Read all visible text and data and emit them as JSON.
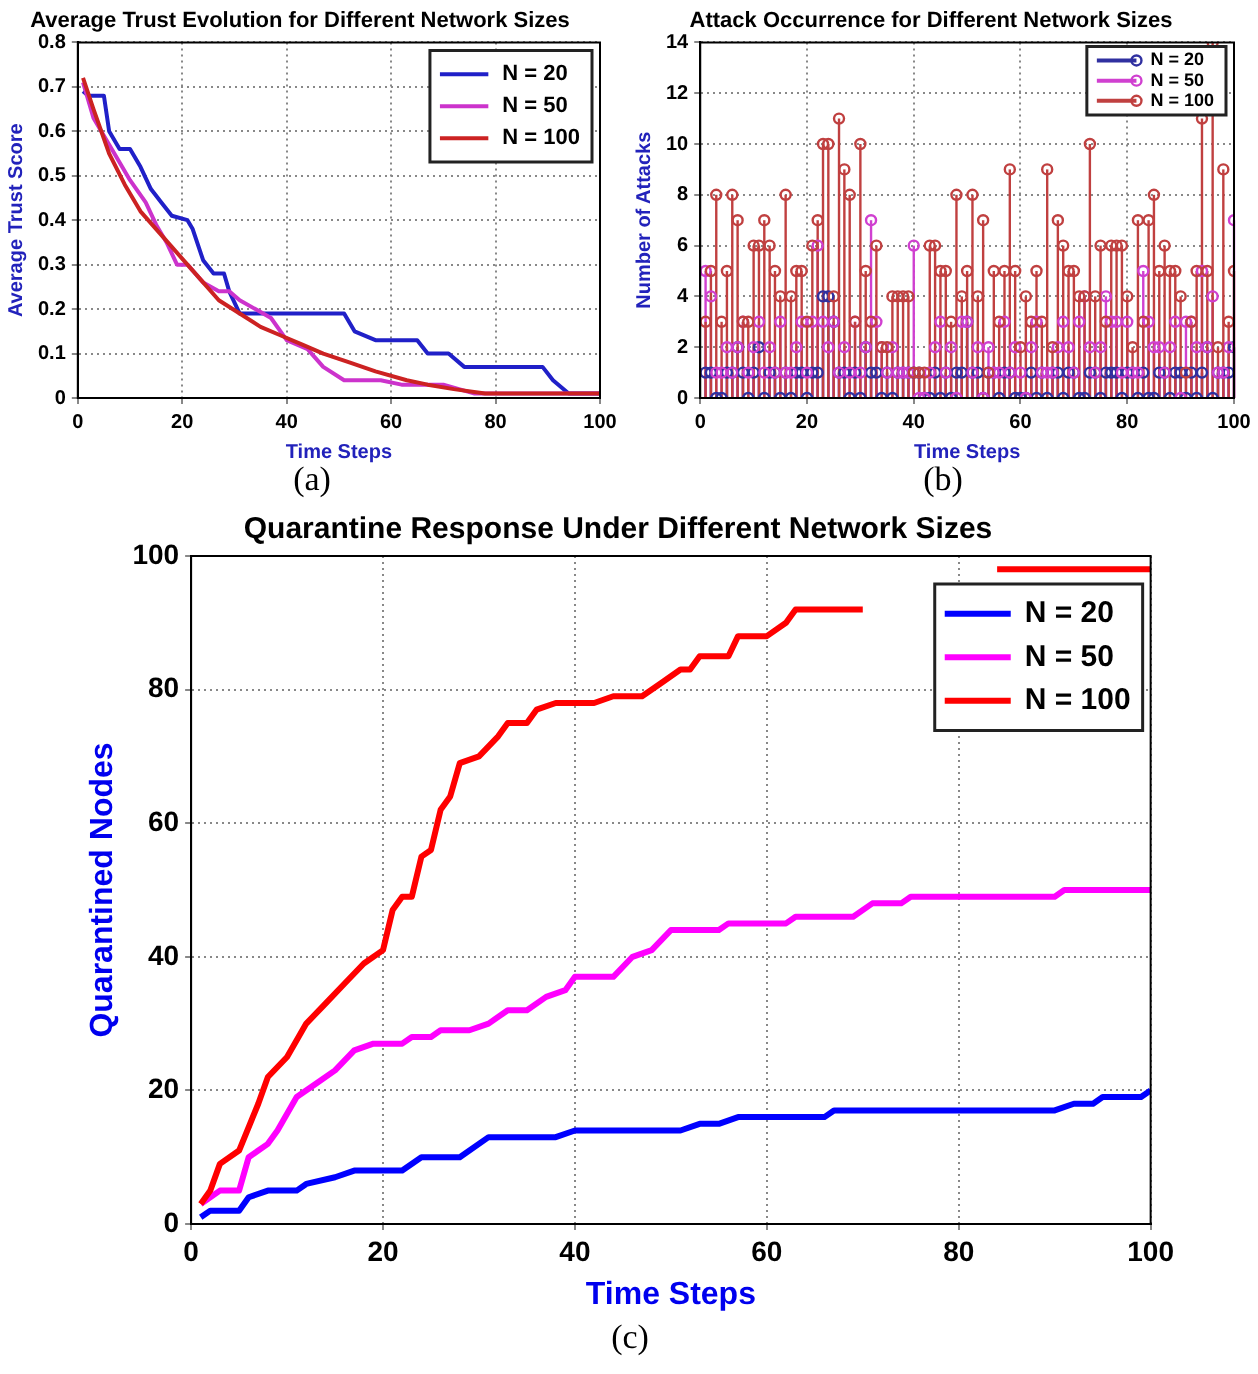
{
  "chart_data": [
    {
      "type": "line",
      "title": "Average Trust Evolution for Different Network Sizes",
      "xlabel": "Time Steps",
      "ylabel": "Average Trust Score",
      "annotations": [
        "(a)"
      ],
      "xlim": [
        0,
        100
      ],
      "xticks": [
        0,
        20,
        40,
        60,
        80,
        100
      ],
      "ylim": [
        0,
        0.8
      ],
      "yticks": [
        0,
        0.1,
        0.2,
        0.3,
        0.4,
        0.5,
        0.6,
        0.7,
        0.8
      ],
      "grid": true,
      "legend": "top right",
      "series": [
        {
          "name": "N = 20",
          "color": "#2020c8",
          "x": [
            1,
            2,
            5,
            6,
            8,
            10,
            12,
            14,
            16,
            18,
            21,
            22,
            24,
            26,
            28,
            29,
            31,
            51,
            53,
            57,
            65,
            67,
            71,
            74,
            89,
            91,
            94,
            100
          ],
          "values": [
            0.69,
            0.68,
            0.68,
            0.6,
            0.56,
            0.56,
            0.52,
            0.47,
            0.44,
            0.41,
            0.4,
            0.38,
            0.31,
            0.28,
            0.28,
            0.24,
            0.19,
            0.19,
            0.15,
            0.13,
            0.13,
            0.1,
            0.1,
            0.07,
            0.07,
            0.04,
            0.01,
            0.01
          ]
        },
        {
          "name": "N = 50",
          "color": "#cc33cc",
          "x": [
            1,
            3,
            5,
            7,
            10,
            13,
            15,
            17,
            19,
            21,
            24,
            27,
            29,
            31,
            34,
            37,
            40,
            44,
            47,
            51,
            58,
            62,
            70,
            76,
            100
          ],
          "values": [
            0.71,
            0.63,
            0.59,
            0.55,
            0.49,
            0.44,
            0.39,
            0.35,
            0.3,
            0.3,
            0.26,
            0.24,
            0.24,
            0.22,
            0.2,
            0.18,
            0.13,
            0.11,
            0.07,
            0.04,
            0.04,
            0.03,
            0.03,
            0.01,
            0.01
          ]
        },
        {
          "name": "N = 100",
          "color": "#cc2222",
          "x": [
            1,
            3,
            6,
            9,
            12,
            15,
            18,
            21,
            24,
            27,
            31,
            35,
            39,
            43,
            47,
            52,
            57,
            63,
            67,
            72,
            78,
            100
          ],
          "values": [
            0.72,
            0.65,
            0.55,
            0.48,
            0.42,
            0.38,
            0.34,
            0.3,
            0.26,
            0.22,
            0.19,
            0.16,
            0.14,
            0.12,
            0.1,
            0.08,
            0.06,
            0.04,
            0.03,
            0.02,
            0.01,
            0.01
          ]
        }
      ]
    },
    {
      "type": "lollipop",
      "title": "Attack Occurrence for Different Network Sizes",
      "xlabel": "Time Steps",
      "ylabel": "Number of Attacks",
      "annotations": [
        "(b)"
      ],
      "xlim": [
        0,
        100
      ],
      "xticks": [
        0,
        20,
        40,
        60,
        80,
        100
      ],
      "ylim": [
        0,
        14
      ],
      "yticks": [
        0,
        2,
        4,
        6,
        8,
        10,
        12,
        14
      ],
      "grid": true,
      "legend": "top right",
      "marker": "circle",
      "x": [
        1,
        2,
        3,
        4,
        5,
        6,
        7,
        8,
        9,
        10,
        11,
        12,
        13,
        14,
        15,
        16,
        17,
        18,
        19,
        20,
        21,
        22,
        23,
        24,
        25,
        26,
        27,
        28,
        29,
        30,
        31,
        32,
        33,
        34,
        35,
        36,
        37,
        38,
        39,
        40,
        41,
        42,
        43,
        44,
        45,
        46,
        47,
        48,
        49,
        50,
        51,
        52,
        53,
        54,
        55,
        56,
        57,
        58,
        59,
        60,
        61,
        62,
        63,
        64,
        65,
        66,
        67,
        68,
        69,
        70,
        71,
        72,
        73,
        74,
        75,
        76,
        77,
        78,
        79,
        80,
        81,
        82,
        83,
        84,
        85,
        86,
        87,
        88,
        89,
        90,
        91,
        92,
        93,
        94,
        95,
        96,
        97,
        98,
        99,
        100
      ],
      "series": [
        {
          "name": "N = 20",
          "color": "#3030a0",
          "values": [
            1,
            1,
            0,
            0,
            1,
            1,
            2,
            1,
            0,
            1,
            2,
            0,
            1,
            1,
            0,
            1,
            0,
            1,
            1,
            0,
            1,
            1,
            4,
            4,
            3,
            1,
            1,
            0,
            1,
            0,
            2,
            1,
            1,
            0,
            1,
            0,
            1,
            1,
            1,
            1,
            1,
            0,
            0,
            1,
            0,
            1,
            0,
            1,
            1,
            3,
            1,
            1,
            0,
            1,
            1,
            0,
            1,
            1,
            0,
            0,
            0,
            1,
            0,
            1,
            0,
            1,
            1,
            0,
            1,
            1,
            0,
            0,
            1,
            1,
            0,
            1,
            1,
            1,
            0,
            1,
            1,
            0,
            1,
            0,
            0,
            1,
            1,
            0,
            1,
            1,
            0,
            1,
            0,
            1,
            2,
            0,
            1,
            1,
            1,
            2
          ]
        },
        {
          "name": "N = 50",
          "color": "#d040d0",
          "values": [
            5,
            4,
            1,
            1,
            2,
            1,
            2,
            3,
            1,
            2,
            3,
            1,
            2,
            1,
            3,
            1,
            1,
            2,
            3,
            1,
            3,
            6,
            3,
            2,
            3,
            1,
            2,
            1,
            3,
            1,
            2,
            7,
            3,
            2,
            1,
            2,
            1,
            1,
            1,
            6,
            0,
            0,
            1,
            2,
            3,
            1,
            2,
            0,
            3,
            3,
            1,
            2,
            0,
            2,
            1,
            1,
            3,
            1,
            2,
            1,
            0,
            2,
            3,
            1,
            1,
            1,
            2,
            3,
            2,
            1,
            3,
            4,
            2,
            1,
            2,
            4,
            3,
            3,
            1,
            3,
            1,
            1,
            5,
            3,
            2,
            2,
            1,
            2,
            3,
            0,
            3,
            3,
            2,
            5,
            2,
            4,
            1,
            1,
            2,
            7
          ]
        },
        {
          "name": "N = 100",
          "color": "#c04040",
          "values": [
            3,
            5,
            8,
            3,
            5,
            8,
            7,
            3,
            3,
            6,
            6,
            7,
            6,
            5,
            4,
            8,
            4,
            5,
            5,
            3,
            6,
            7,
            10,
            10,
            4,
            11,
            9,
            8,
            3,
            10,
            5,
            3,
            6,
            2,
            2,
            4,
            4,
            4,
            4,
            1,
            1,
            1,
            6,
            6,
            5,
            5,
            3,
            8,
            4,
            5,
            8,
            4,
            7,
            1,
            5,
            3,
            5,
            9,
            5,
            2,
            4,
            3,
            5,
            3,
            9,
            2,
            7,
            6,
            5,
            5,
            4,
            4,
            10,
            4,
            6,
            3,
            6,
            6,
            6,
            4,
            2,
            7,
            3,
            7,
            8,
            5,
            6,
            5,
            5,
            4,
            1,
            3,
            5,
            11,
            5,
            14,
            2,
            9,
            3,
            5
          ]
        }
      ]
    },
    {
      "type": "line",
      "title": "Quarantine Response Under Different Network Sizes",
      "xlabel": "Time Steps",
      "ylabel": "Quarantined Nodes",
      "annotations": [
        "(c)"
      ],
      "xlim": [
        0,
        100
      ],
      "xticks": [
        0,
        20,
        40,
        60,
        80,
        100
      ],
      "ylim": [
        0,
        100
      ],
      "yticks": [
        0,
        20,
        40,
        60,
        80,
        100
      ],
      "grid": true,
      "legend": "top right",
      "series": [
        {
          "name": "N = 20",
          "color": "#0000ff",
          "x": [
            1,
            2,
            5,
            6,
            8,
            11,
            12,
            15,
            17,
            22,
            24,
            28,
            31,
            38,
            40,
            51,
            53,
            55,
            57,
            66,
            67,
            90,
            92,
            94,
            95,
            99,
            100
          ],
          "values": [
            1,
            2,
            2,
            4,
            5,
            5,
            6,
            7,
            8,
            8,
            10,
            10,
            13,
            13,
            14,
            14,
            15,
            15,
            16,
            16,
            17,
            17,
            18,
            18,
            19,
            19,
            20
          ]
        },
        {
          "name": "N = 50",
          "color": "#ff00ff",
          "x": [
            1,
            3,
            5,
            6,
            8,
            9,
            11,
            13,
            15,
            17,
            19,
            22,
            23,
            25,
            26,
            29,
            31,
            33,
            35,
            37,
            39,
            40,
            44,
            46,
            48,
            50,
            55,
            56,
            62,
            63,
            69,
            71,
            74,
            75,
            90,
            91,
            100
          ],
          "values": [
            3,
            5,
            5,
            10,
            12,
            14,
            19,
            21,
            23,
            26,
            27,
            27,
            28,
            28,
            29,
            29,
            30,
            32,
            32,
            34,
            35,
            37,
            37,
            40,
            41,
            44,
            44,
            45,
            45,
            46,
            46,
            48,
            48,
            49,
            49,
            50,
            50
          ]
        },
        {
          "name": "N = 100",
          "color": "#ff0000",
          "x": [
            1,
            2,
            3,
            5,
            7,
            8,
            10,
            12,
            14,
            16,
            18,
            20,
            21,
            22,
            23,
            24,
            25,
            26,
            27,
            28,
            30,
            32,
            33,
            35,
            36,
            38,
            42,
            44,
            47,
            49,
            51,
            52,
            53,
            56,
            57,
            60,
            62,
            63,
            70,
            77,
            84,
            100
          ],
          "values": [
            3,
            5,
            9,
            11,
            18,
            22,
            25,
            30,
            33,
            36,
            39,
            41,
            47,
            49,
            49,
            55,
            56,
            62,
            64,
            69,
            70,
            73,
            75,
            75,
            77,
            78,
            78,
            79,
            79,
            81,
            83,
            83,
            85,
            85,
            88,
            88,
            90,
            92,
            92,
            null,
            98,
            98
          ]
        }
      ]
    }
  ]
}
